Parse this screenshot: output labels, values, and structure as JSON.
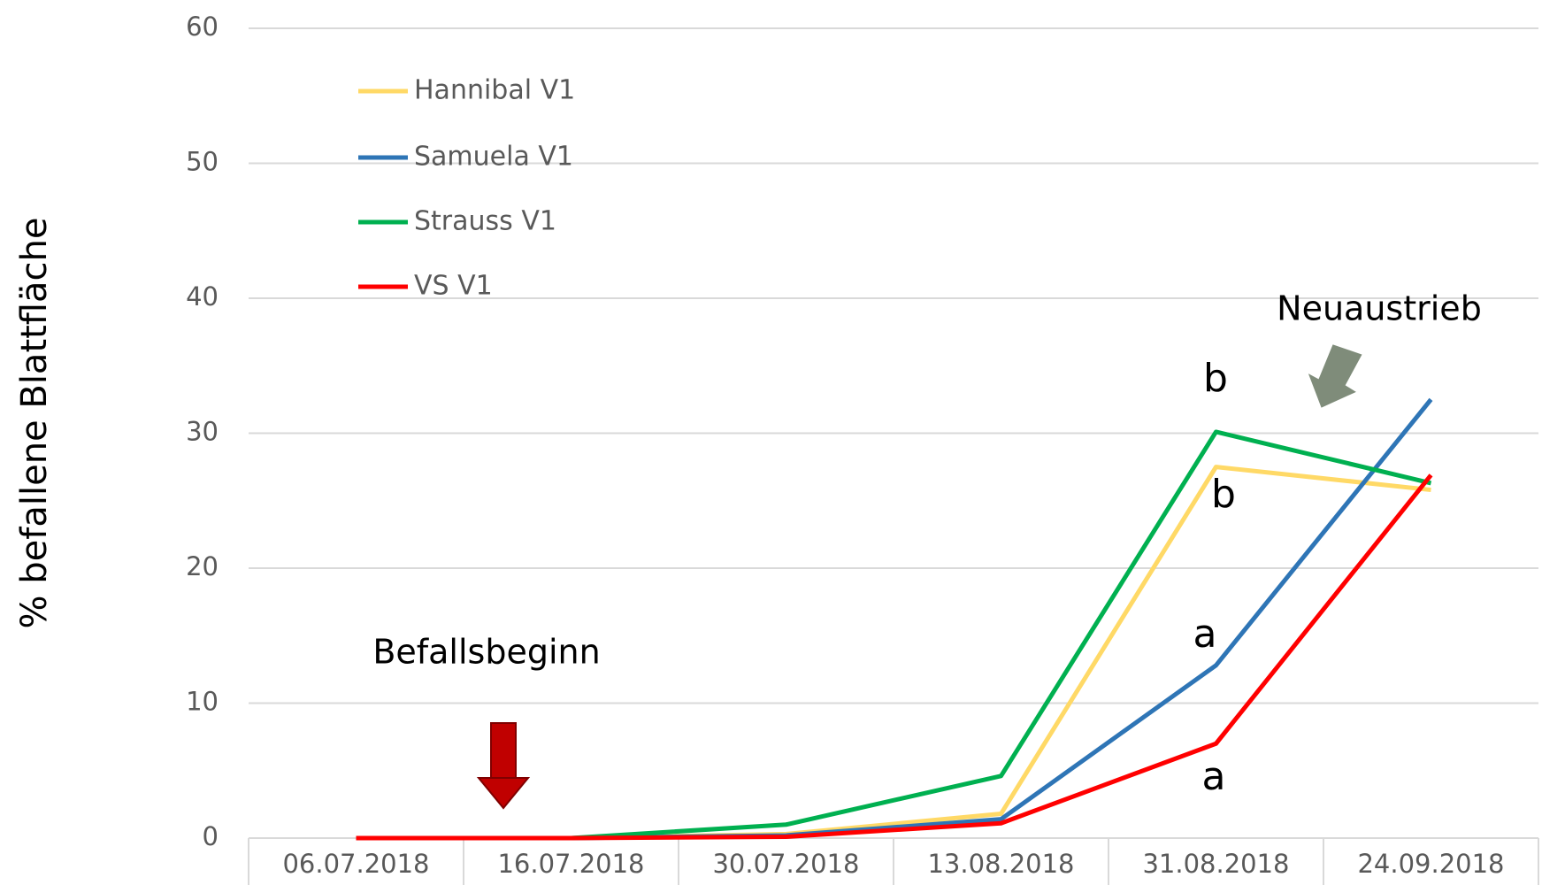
{
  "chart_data": {
    "type": "line",
    "y_label": "% befallene Blattfläche",
    "categories": [
      "06.07.2018",
      "16.07.2018",
      "30.07.2018",
      "13.08.2018",
      "31.08.2018",
      "24.09.2018"
    ],
    "series": [
      {
        "name": "Hannibal V1",
        "color": "#ffd966",
        "values": [
          0,
          0,
          0.3,
          1.8,
          27.5,
          25.8
        ]
      },
      {
        "name": "Samuela V1",
        "color": "#2e75b6",
        "values": [
          0,
          0,
          0.2,
          1.4,
          12.8,
          32.5
        ]
      },
      {
        "name": "Strauss V1",
        "color": "#00b050",
        "values": [
          0,
          0,
          1,
          4.6,
          30.1,
          26.3
        ]
      },
      {
        "name": "VS V1",
        "color": "#ff0000",
        "values": [
          0,
          0,
          0.1,
          1.1,
          7,
          26.9
        ]
      }
    ],
    "ylim": [
      0,
      60
    ],
    "yticks": [
      0,
      10,
      20,
      30,
      40,
      50,
      60
    ],
    "grid": true,
    "legend": "upper left",
    "annotations": [
      "b",
      "b",
      "a",
      "a",
      "Neuaustrieb",
      "Befallsbeginn"
    ]
  }
}
